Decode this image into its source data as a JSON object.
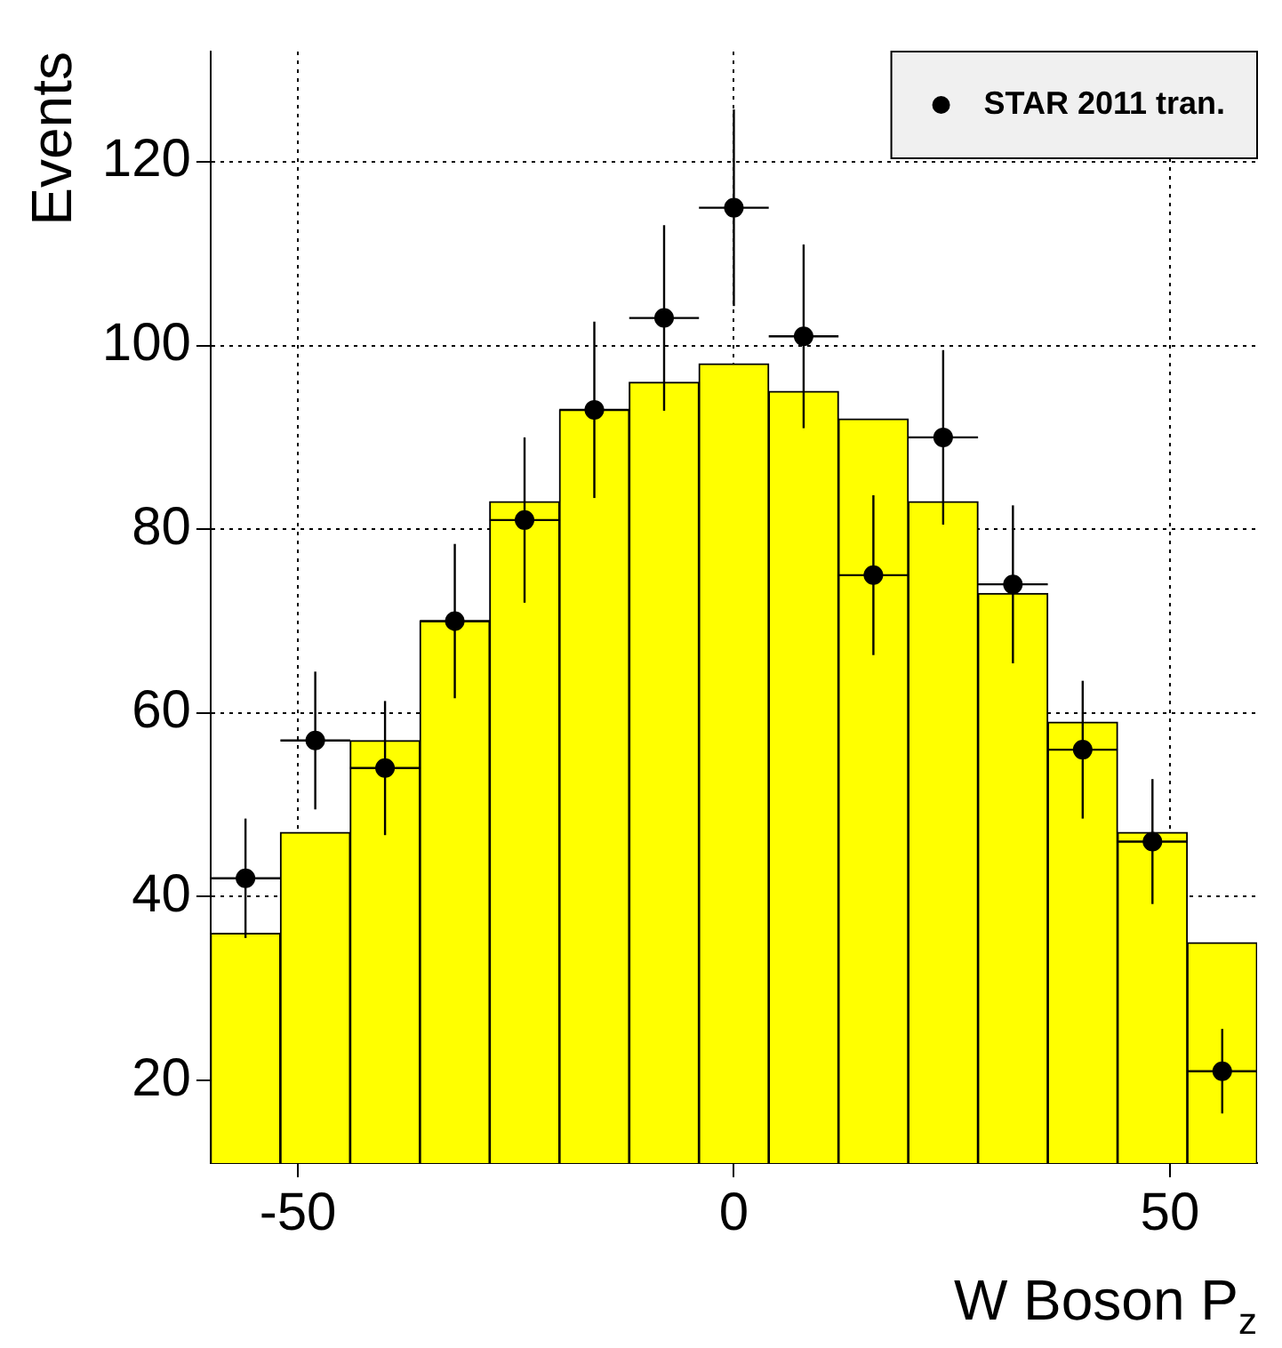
{
  "chart_data": {
    "type": "histogram",
    "xlabel": "W Boson P$_{z}$",
    "ylabel": "Events",
    "bins": [
      -60,
      -52,
      -44,
      -36,
      -28,
      -20,
      -12,
      -4,
      4,
      12,
      20,
      28,
      36,
      44,
      52,
      60
    ],
    "series": [
      {
        "type": "histogram",
        "color": "#ffff00",
        "values": [
          36,
          47,
          57,
          70,
          83,
          93,
          96,
          98,
          95,
          92,
          83,
          73,
          59,
          47,
          35
        ]
      },
      {
        "type": "scatter",
        "name": "STAR 2011 tran.",
        "color": "#000000",
        "x": [
          -56,
          -48,
          -40,
          -32,
          -24,
          -16,
          -8,
          0,
          8,
          16,
          24,
          32,
          40,
          48,
          56
        ],
        "values": [
          42,
          57,
          54,
          70,
          81,
          93,
          103,
          115,
          101,
          75,
          90,
          74,
          56,
          46,
          21
        ],
        "errors": [
          6.5,
          7.5,
          7.3,
          8.4,
          9,
          9.6,
          10.1,
          10.7,
          10,
          8.7,
          9.5,
          8.6,
          7.5,
          6.8,
          4.6
        ],
        "xerrors": [
          4,
          4,
          4,
          4,
          4,
          4,
          4,
          4,
          4,
          4,
          4,
          4,
          4,
          4,
          4
        ]
      }
    ],
    "xlim": [
      -60,
      60
    ],
    "ylim": [
      11,
      132
    ],
    "xticks": [
      -50,
      0,
      50
    ],
    "yticks": [
      20,
      40,
      60,
      80,
      100,
      120
    ],
    "grid": true,
    "legend": "top right",
    "marker": "circle"
  }
}
